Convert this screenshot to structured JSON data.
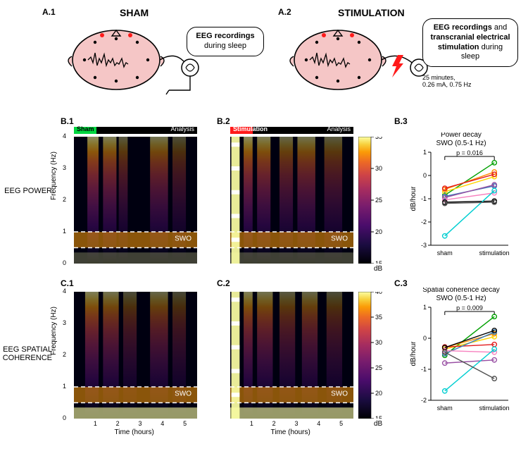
{
  "labels": {
    "A1": "A.1",
    "A2": "A.2",
    "B1": "B.1",
    "B2": "B.2",
    "B3": "B.3",
    "C1": "C.1",
    "C2": "C.2",
    "C3": "C.3",
    "sham": "SHAM",
    "stim": "STIMULATION",
    "eegPower": "EEG POWER",
    "eegCoh": "EEG SPATIAL\nCOHERENCE"
  },
  "callouts": {
    "sham_html": "<b>EEG recordings</b><br>during sleep",
    "stim_html": "<b>EEG recordings</b> and<br><b>transcranial electrical<br>stimulation</b> during<br>sleep",
    "stim_sub": "25 minutes,\n0.26 mA, 0.75 Hz"
  },
  "miniBars": {
    "shamTag": "Sham",
    "stimTag": "Stimulation",
    "analysis": "Analysis",
    "shamColor": "#00d63f",
    "stimColor": "#ff1a1a",
    "barBg": "#000000",
    "segWidthPct": 18
  },
  "spectro": {
    "xlabel": "Time (hours)",
    "ylabel": "Frequency (Hz)",
    "xticks": [
      1,
      2,
      3,
      4,
      5
    ],
    "yticks": [
      0,
      1,
      2,
      3,
      4
    ],
    "swo": "SWO",
    "swband": [
      0.5,
      1.0
    ],
    "bg": "#000010",
    "dashColor": "#ffffff",
    "colorbarB": {
      "min": 15,
      "max": 35,
      "label": "dB"
    },
    "colorbarC": {
      "min": 15,
      "max": 40,
      "label": "dB"
    },
    "colormapStops": [
      {
        "o": 0.0,
        "c": "#000004"
      },
      {
        "o": 0.15,
        "c": "#1b0c41"
      },
      {
        "o": 0.3,
        "c": "#4a0c6b"
      },
      {
        "o": 0.45,
        "c": "#781c6d"
      },
      {
        "o": 0.58,
        "c": "#a52c60"
      },
      {
        "o": 0.7,
        "c": "#cf4446"
      },
      {
        "o": 0.8,
        "c": "#ed6925"
      },
      {
        "o": 0.88,
        "c": "#fb9b06"
      },
      {
        "o": 0.94,
        "c": "#f7d13d"
      },
      {
        "o": 1.0,
        "c": "#fcffa4"
      }
    ]
  },
  "lineplots": {
    "colors": [
      "#00a000",
      "#ffd400",
      "#ff8c00",
      "#e31a1c",
      "#377eb8",
      "#984ea3",
      "#f781bf",
      "#000000",
      "#00ced1",
      "#505050"
    ],
    "stroke": 1.4,
    "marker_r": 3.2,
    "xlabels": [
      "sham",
      "stimulation"
    ],
    "B3": {
      "title": "Power decay\nSWO (0.5-1 Hz)",
      "pval": "p = 0.016",
      "ylabel": "dB/hour",
      "ylim": [
        -3,
        1
      ],
      "yticks": [
        -3,
        -2,
        -1,
        0,
        1
      ],
      "pairs": [
        [
          -0.85,
          0.55
        ],
        [
          -0.7,
          -0.05
        ],
        [
          -0.6,
          0.15
        ],
        [
          -0.55,
          0.05
        ],
        [
          -0.9,
          -0.45
        ],
        [
          -0.95,
          -0.4
        ],
        [
          -1.05,
          -0.75
        ],
        [
          -1.15,
          -1.1
        ],
        [
          -2.6,
          -0.65
        ],
        [
          -1.2,
          -1.15
        ]
      ]
    },
    "C3": {
      "title": "Spatial coherence decay\nSWO (0.5-1 Hz)",
      "pval": "p = 0.009",
      "ylabel": "dB/hour",
      "ylim": [
        -2,
        1
      ],
      "yticks": [
        -2,
        -1,
        0,
        1
      ],
      "pairs": [
        [
          -0.55,
          0.7
        ],
        [
          -0.35,
          0.05
        ],
        [
          -0.3,
          0.15
        ],
        [
          -0.28,
          -0.2
        ],
        [
          -0.5,
          0.2
        ],
        [
          -0.8,
          -0.7
        ],
        [
          -0.4,
          -0.45
        ],
        [
          -0.3,
          0.25
        ],
        [
          -1.7,
          -0.35
        ],
        [
          -0.45,
          -1.3
        ]
      ]
    }
  }
}
